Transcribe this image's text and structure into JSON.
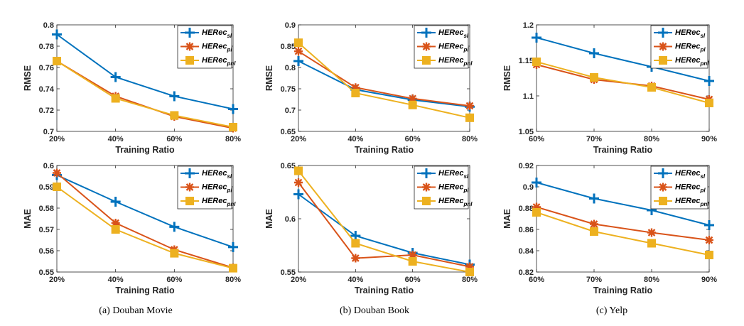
{
  "colors": {
    "sl": "#0072BD",
    "pl": "#D95319",
    "pnl": "#EDB120"
  },
  "legend_entries": [
    {
      "key": "sl",
      "base": "HERec",
      "sub": "sl"
    },
    {
      "key": "pl",
      "base": "HERec",
      "sub": "pl"
    },
    {
      "key": "pnl",
      "base": "HERec",
      "sub": "pnl"
    }
  ],
  "captions": [
    "(a) Douban Movie",
    "(b) Douban Book",
    "(c) Yelp"
  ],
  "chart_data": [
    {
      "type": "line",
      "title": "",
      "xlabel": "Training Ratio",
      "ylabel": "RMSE",
      "categories": [
        "20%",
        "40%",
        "60%",
        "80%"
      ],
      "ylim": [
        0.7,
        0.8
      ],
      "yticks": [
        "0.7",
        "0.72",
        "0.74",
        "0.76",
        "0.78",
        "0.8"
      ],
      "legend": "top-right",
      "series": [
        {
          "key": "sl",
          "values": [
            0.791,
            0.751,
            0.733,
            0.721
          ]
        },
        {
          "key": "pl",
          "values": [
            0.766,
            0.733,
            0.714,
            0.703
          ]
        },
        {
          "key": "pnl",
          "values": [
            0.766,
            0.731,
            0.715,
            0.704
          ]
        }
      ]
    },
    {
      "type": "line",
      "title": "",
      "xlabel": "Training Ratio",
      "ylabel": "RMSE",
      "categories": [
        "20%",
        "40%",
        "60%",
        "80%"
      ],
      "ylim": [
        0.65,
        0.9
      ],
      "yticks": [
        "0.65",
        "0.7",
        "0.75",
        "0.8",
        "0.85",
        "0.9"
      ],
      "legend": "top-right",
      "series": [
        {
          "key": "sl",
          "values": [
            0.815,
            0.748,
            0.724,
            0.708
          ]
        },
        {
          "key": "pl",
          "values": [
            0.838,
            0.753,
            0.727,
            0.71
          ]
        },
        {
          "key": "pnl",
          "values": [
            0.858,
            0.74,
            0.712,
            0.682
          ]
        }
      ]
    },
    {
      "type": "line",
      "title": "",
      "xlabel": "Training Ratio",
      "ylabel": "RMSE",
      "categories": [
        "60%",
        "70%",
        "80%",
        "90%"
      ],
      "ylim": [
        1.05,
        1.2
      ],
      "yticks": [
        "1.05",
        "1.1",
        "1.15",
        "1.2"
      ],
      "legend": "top-right",
      "series": [
        {
          "key": "sl",
          "values": [
            1.182,
            1.16,
            1.141,
            1.121
          ]
        },
        {
          "key": "pl",
          "values": [
            1.144,
            1.123,
            1.114,
            1.095
          ]
        },
        {
          "key": "pnl",
          "values": [
            1.148,
            1.126,
            1.112,
            1.09
          ]
        }
      ]
    },
    {
      "type": "line",
      "title": "",
      "xlabel": "Training Ratio",
      "ylabel": "MAE",
      "categories": [
        "20%",
        "40%",
        "60%",
        "80%"
      ],
      "ylim": [
        0.55,
        0.6
      ],
      "yticks": [
        "0.55",
        "0.56",
        "0.57",
        "0.58",
        "0.59",
        "0.6"
      ],
      "legend": "top-right",
      "series": [
        {
          "key": "sl",
          "values": [
            0.5955,
            0.583,
            0.5712,
            0.5617
          ]
        },
        {
          "key": "pl",
          "values": [
            0.5965,
            0.573,
            0.5605,
            0.552
          ]
        },
        {
          "key": "pnl",
          "values": [
            0.59,
            0.57,
            0.5588,
            0.5518
          ]
        }
      ]
    },
    {
      "type": "line",
      "title": "",
      "xlabel": "Training Ratio",
      "ylabel": "MAE",
      "categories": [
        "20%",
        "40%",
        "60%",
        "80%"
      ],
      "ylim": [
        0.55,
        0.65
      ],
      "yticks": [
        "0.55",
        "0.6",
        "0.65"
      ],
      "legend": "top-right",
      "series": [
        {
          "key": "sl",
          "values": [
            0.623,
            0.584,
            0.568,
            0.557
          ]
        },
        {
          "key": "pl",
          "values": [
            0.634,
            0.563,
            0.566,
            0.555
          ]
        },
        {
          "key": "pnl",
          "values": [
            0.645,
            0.577,
            0.56,
            0.55
          ]
        }
      ]
    },
    {
      "type": "line",
      "title": "",
      "xlabel": "Training Ratio",
      "ylabel": "MAE",
      "categories": [
        "60%",
        "70%",
        "80%",
        "90%"
      ],
      "ylim": [
        0.82,
        0.92
      ],
      "yticks": [
        "0.82",
        "0.84",
        "0.86",
        "0.88",
        "0.9",
        "0.92"
      ],
      "legend": "top-right",
      "series": [
        {
          "key": "sl",
          "values": [
            0.904,
            0.889,
            0.878,
            0.864
          ]
        },
        {
          "key": "pl",
          "values": [
            0.881,
            0.865,
            0.857,
            0.85
          ]
        },
        {
          "key": "pnl",
          "values": [
            0.876,
            0.858,
            0.847,
            0.836
          ]
        }
      ]
    }
  ]
}
